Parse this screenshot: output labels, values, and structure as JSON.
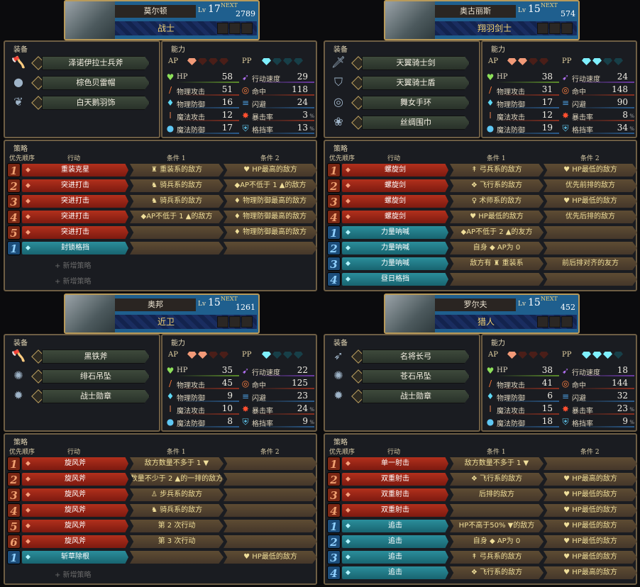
{
  "labels": {
    "equip": "装备",
    "ability": "能力",
    "ap": "AP",
    "pp": "PP",
    "strategy": "策略",
    "col_priority": "优先顺序",
    "col_action": "行动",
    "col_cond1": "条件 1",
    "col_cond2": "条件 2",
    "add": "+ 新增策略",
    "lv": "Lv",
    "next": "NEXT"
  },
  "colors": {
    "ap_action": "#b2301c",
    "pp_action": "#2b8e9b",
    "enemy": "#ef5a5a",
    "ally": "#6fd7f0",
    "condition": "#f0df9a"
  },
  "stat_labels": [
    "HP",
    "物理攻击",
    "物理防御",
    "魔法攻击",
    "魔法防御"
  ],
  "stat_labels2": [
    "行动速度",
    "命中",
    "闪避",
    "暴击率",
    "格挡率"
  ],
  "characters": [
    {
      "name": "莫尔顿",
      "level": "17",
      "next": "2789",
      "class": "战士",
      "ap_filled": 1,
      "pp_filled": 1,
      "equipment": [
        {
          "name": "泽诺伊拉士兵斧",
          "icon": "axe-icon"
        },
        {
          "name": "棕色贝雷帽",
          "icon": "hat-icon"
        },
        {
          "name": "白天鹅羽饰",
          "icon": "feather-icon"
        }
      ],
      "stats": [
        "58",
        "51",
        "16",
        "12",
        "17"
      ],
      "stats2": [
        "29",
        "118",
        "24",
        "3",
        "13"
      ],
      "strategies": [
        {
          "type": "ap",
          "priority": "1",
          "action": "重装克星",
          "cond1": "♜ 重装系的敌方",
          "cond2": "♥ HP最高的敌方"
        },
        {
          "type": "ap",
          "priority": "2",
          "action": "突进打击",
          "cond1": "♞ 骑兵系的敌方",
          "cond2": "◆AP不低于 1 ▲的敌方"
        },
        {
          "type": "ap",
          "priority": "3",
          "action": "突进打击",
          "cond1": "♞ 骑兵系的敌方",
          "cond2": "♦ 物理防御最高的敌方"
        },
        {
          "type": "ap",
          "priority": "4",
          "action": "突进打击",
          "cond1": "◆AP不低于 1 ▲的敌方",
          "cond2": "♦ 物理防御最高的敌方"
        },
        {
          "type": "ap",
          "priority": "5",
          "action": "突进打击",
          "cond1": "",
          "cond2": "♦ 物理防御最高的敌方"
        },
        {
          "type": "pp",
          "priority": "1",
          "action": "封锁格挡",
          "cond1": "",
          "cond2": ""
        }
      ],
      "add_count": 2
    },
    {
      "name": "奥古丽斯",
      "level": "15",
      "next": "574",
      "class": "翔羽剑士",
      "ap_filled": 2,
      "pp_filled": 2,
      "equipment": [
        {
          "name": "天翼骑士剑",
          "icon": "sword-icon"
        },
        {
          "name": "天翼骑士盾",
          "icon": "shield-icon"
        },
        {
          "name": "舞女手环",
          "icon": "bracelet-icon"
        },
        {
          "name": "丝绸围巾",
          "icon": "scarf-icon"
        }
      ],
      "stats": [
        "38",
        "31",
        "17",
        "12",
        "19"
      ],
      "stats2": [
        "24",
        "148",
        "90",
        "8",
        "34"
      ],
      "strategies": [
        {
          "type": "ap",
          "priority": "1",
          "action": "螺旋剑",
          "cond1": "↟ 弓兵系的敌方",
          "cond2": "♥ HP最低的敌方"
        },
        {
          "type": "ap",
          "priority": "2",
          "action": "螺旋剑",
          "cond1": "❖ 飞行系的敌方",
          "cond2": "优先前排的敌方"
        },
        {
          "type": "ap",
          "priority": "3",
          "action": "螺旋剑",
          "cond1": "♀ 术师系的敌方",
          "cond2": "♥ HP最低的敌方"
        },
        {
          "type": "ap",
          "priority": "4",
          "action": "螺旋剑",
          "cond1": "♥ HP最低的敌方",
          "cond2": "优先后排的敌方"
        },
        {
          "type": "pp",
          "priority": "1",
          "action": "力量呐喊",
          "cond1": "◆AP不低于 2 ▲的友方",
          "cond2": ""
        },
        {
          "type": "pp",
          "priority": "2",
          "action": "力量呐喊",
          "cond1": "自身 ◆ AP为 0",
          "cond2": ""
        },
        {
          "type": "pp",
          "priority": "3",
          "action": "力量呐喊",
          "cond1": "敌方有 ♜ 重装系",
          "cond2": "前后排对齐的友方"
        },
        {
          "type": "pp",
          "priority": "4",
          "action": "昼日格挡",
          "cond1": "",
          "cond2": ""
        }
      ],
      "add_count": 0
    },
    {
      "name": "奥邦",
      "level": "15",
      "next": "1261",
      "class": "近卫",
      "ap_filled": 2,
      "pp_filled": 1,
      "equipment": [
        {
          "name": "黑铁斧",
          "icon": "axe-icon"
        },
        {
          "name": "绯石吊坠",
          "icon": "pendant-icon"
        },
        {
          "name": "战士勋章",
          "icon": "medal-icon"
        }
      ],
      "stats": [
        "35",
        "45",
        "9",
        "10",
        "8"
      ],
      "stats2": [
        "22",
        "125",
        "23",
        "24",
        "9"
      ],
      "strategies": [
        {
          "type": "ap",
          "priority": "1",
          "action": "旋风斧",
          "cond1": "敌方数量不多于 1 ▼",
          "cond2": ""
        },
        {
          "type": "ap",
          "priority": "2",
          "action": "旋风斧",
          "cond1": "数量不少于 2 ▲的一排的敌方",
          "cond2": ""
        },
        {
          "type": "ap",
          "priority": "3",
          "action": "旋风斧",
          "cond1": "♙ 步兵系的敌方",
          "cond2": ""
        },
        {
          "type": "ap",
          "priority": "4",
          "action": "旋风斧",
          "cond1": "♞ 骑兵系的敌方",
          "cond2": ""
        },
        {
          "type": "ap",
          "priority": "5",
          "action": "旋风斧",
          "cond1": "第 2 次行动",
          "cond2": ""
        },
        {
          "type": "ap",
          "priority": "6",
          "action": "旋风斧",
          "cond1": "第 3 次行动",
          "cond2": ""
        },
        {
          "type": "pp",
          "priority": "1",
          "action": "斩草除根",
          "cond1": "",
          "cond2": "♥ HP最低的敌方"
        }
      ],
      "add_count": 1
    },
    {
      "name": "罗尔夫",
      "level": "15",
      "next": "452",
      "class": "猎人",
      "ap_filled": 1,
      "pp_filled": 3,
      "equipment": [
        {
          "name": "名将长弓",
          "icon": "bow-icon"
        },
        {
          "name": "苍石吊坠",
          "icon": "pendant-icon"
        },
        {
          "name": "战士勋章",
          "icon": "medal-icon"
        }
      ],
      "stats": [
        "38",
        "41",
        "6",
        "15",
        "18"
      ],
      "stats2": [
        "18",
        "144",
        "32",
        "23",
        "9"
      ],
      "strategies": [
        {
          "type": "ap",
          "priority": "1",
          "action": "单一射击",
          "cond1": "敌方数量不多于 1 ▼",
          "cond2": ""
        },
        {
          "type": "ap",
          "priority": "2",
          "action": "双重射击",
          "cond1": "❖ 飞行系的敌方",
          "cond2": "♥ HP最高的敌方"
        },
        {
          "type": "ap",
          "priority": "3",
          "action": "双重射击",
          "cond1": "后排的敌方",
          "cond2": "♥ HP最低的敌方"
        },
        {
          "type": "ap",
          "priority": "4",
          "action": "双重射击",
          "cond1": "",
          "cond2": "♥ HP最低的敌方"
        },
        {
          "type": "pp",
          "priority": "1",
          "action": "追击",
          "cond1": "HP不高于50% ▼的敌方",
          "cond2": "♥ HP最低的敌方"
        },
        {
          "type": "pp",
          "priority": "2",
          "action": "追击",
          "cond1": "自身 ◆ AP为 0",
          "cond2": "♥ HP最低的敌方"
        },
        {
          "type": "pp",
          "priority": "3",
          "action": "追击",
          "cond1": "↟ 弓兵系的敌方",
          "cond2": "♥ HP最低的敌方"
        },
        {
          "type": "pp",
          "priority": "4",
          "action": "追击",
          "cond1": "❖ 飞行系的敌方",
          "cond2": "♥ HP最高的敌方"
        }
      ],
      "add_count": 0
    }
  ]
}
